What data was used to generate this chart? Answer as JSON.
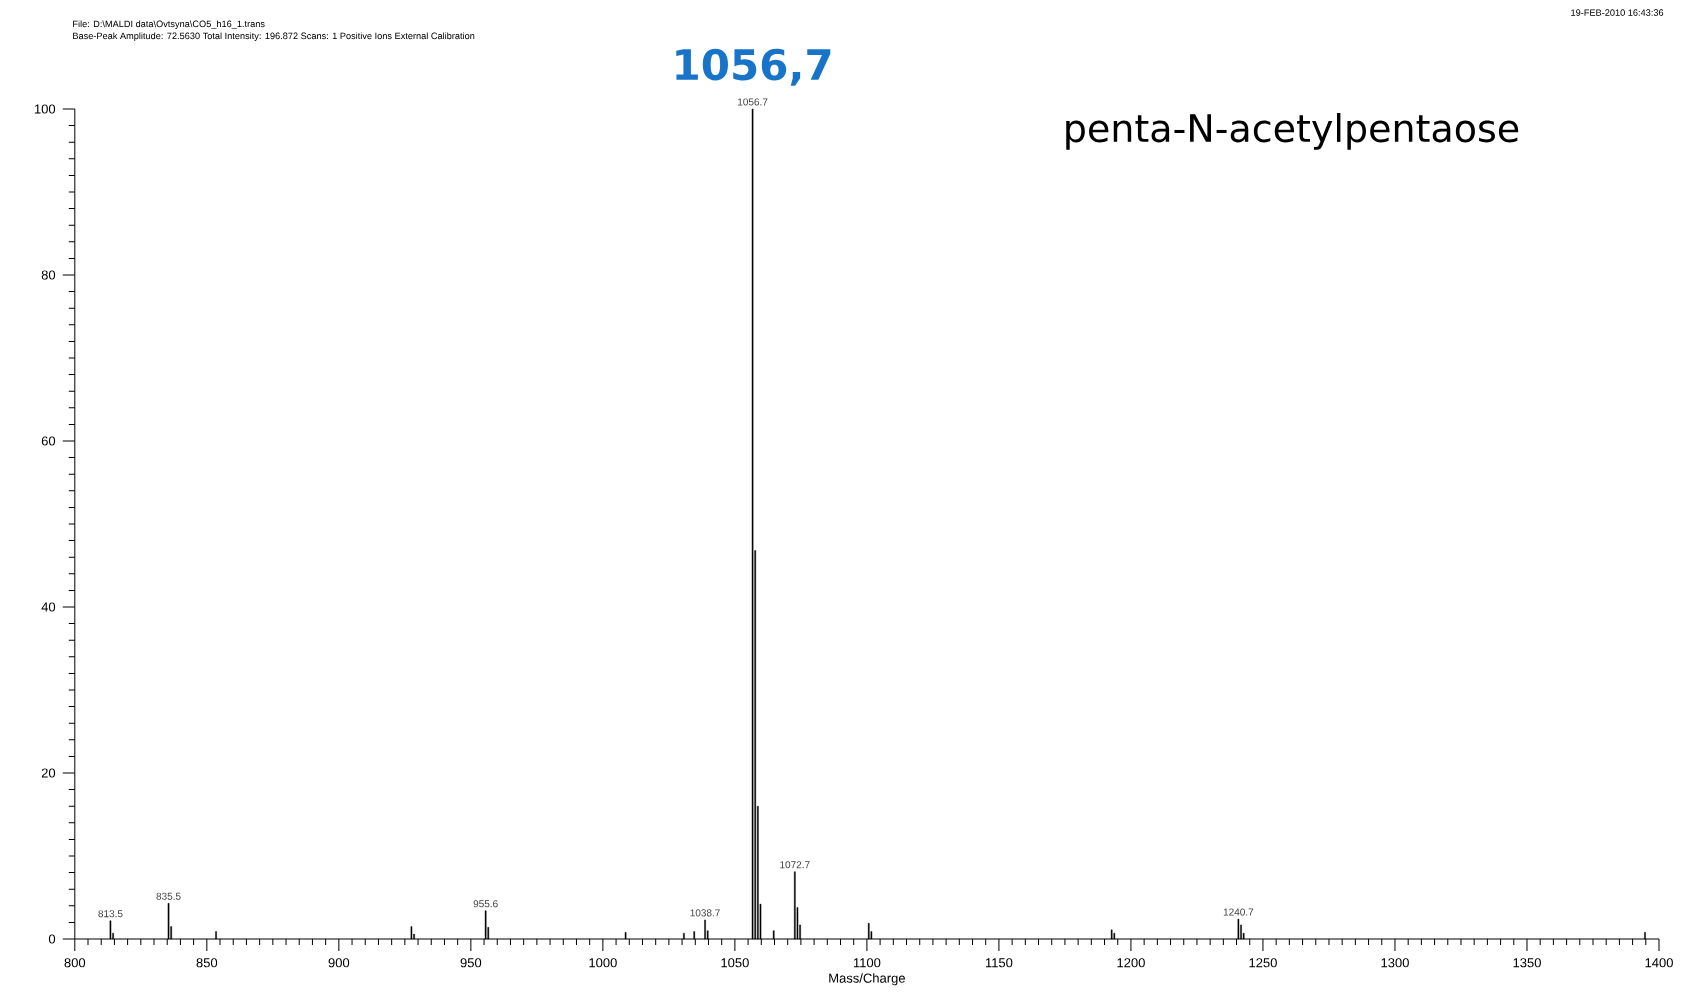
{
  "chart_data": {
    "type": "bar",
    "xlabel": "Mass/Charge",
    "color": "#000000",
    "x": [
      813.5,
      814.5,
      835.5,
      836.5,
      853.5,
      927.5,
      928.5,
      955.6,
      956.6,
      1008.6,
      1030.7,
      1034.6,
      1038.7,
      1039.7,
      1056.7,
      1057.7,
      1058.7,
      1059.7,
      1064.7,
      1072.7,
      1073.7,
      1074.7,
      1100.7,
      1101.7,
      1192.7,
      1193.7,
      1240.7,
      1241.7,
      1242.7,
      1394.7
    ],
    "values": [
      2.2,
      0.7,
      4.3,
      1.5,
      0.9,
      1.5,
      0.6,
      3.4,
      1.4,
      0.8,
      0.7,
      0.9,
      2.3,
      1.0,
      100,
      46.8,
      16,
      4.2,
      1.0,
      8.1,
      3.8,
      1.7,
      1.9,
      0.9,
      1.1,
      0.7,
      2.4,
      1.7,
      0.7,
      0.8
    ],
    "xlim": [
      800,
      1400
    ],
    "xticks": [
      800,
      850,
      900,
      950,
      1000,
      1050,
      1100,
      1150,
      1200,
      1250,
      1300,
      1350,
      1400
    ],
    "ylim": [
      0,
      100
    ],
    "yticks": [
      0,
      20,
      40,
      60,
      80,
      100
    ],
    "annotations": [
      "File: D:\\MALDI data\\Ovtsyna\\CO5_h16_1.trans",
      "Base-Peak Amplitude: 72.5630   Total Intensity: 196.872   Scans: 1      Positive Ions      External Calibration",
      "19-FEB-2010 16:43:36",
      "penta-N-acetylpentaose",
      "1056,7",
      {
        "text": "813.5",
        "x": 813.5,
        "y": 2.2
      },
      {
        "text": "835.5",
        "x": 835.5,
        "y": 4.3
      },
      {
        "text": "955.6",
        "x": 955.6,
        "y": 3.4
      },
      {
        "text": "1038.7",
        "x": 1038.7,
        "y": 2.3
      },
      {
        "text": "1056.7",
        "x": 1056.7,
        "y": 100
      },
      {
        "text": "1072.7",
        "x": 1072.7,
        "y": 8.1
      },
      {
        "text": "1240.7",
        "x": 1240.7,
        "y": 2.4
      }
    ]
  }
}
